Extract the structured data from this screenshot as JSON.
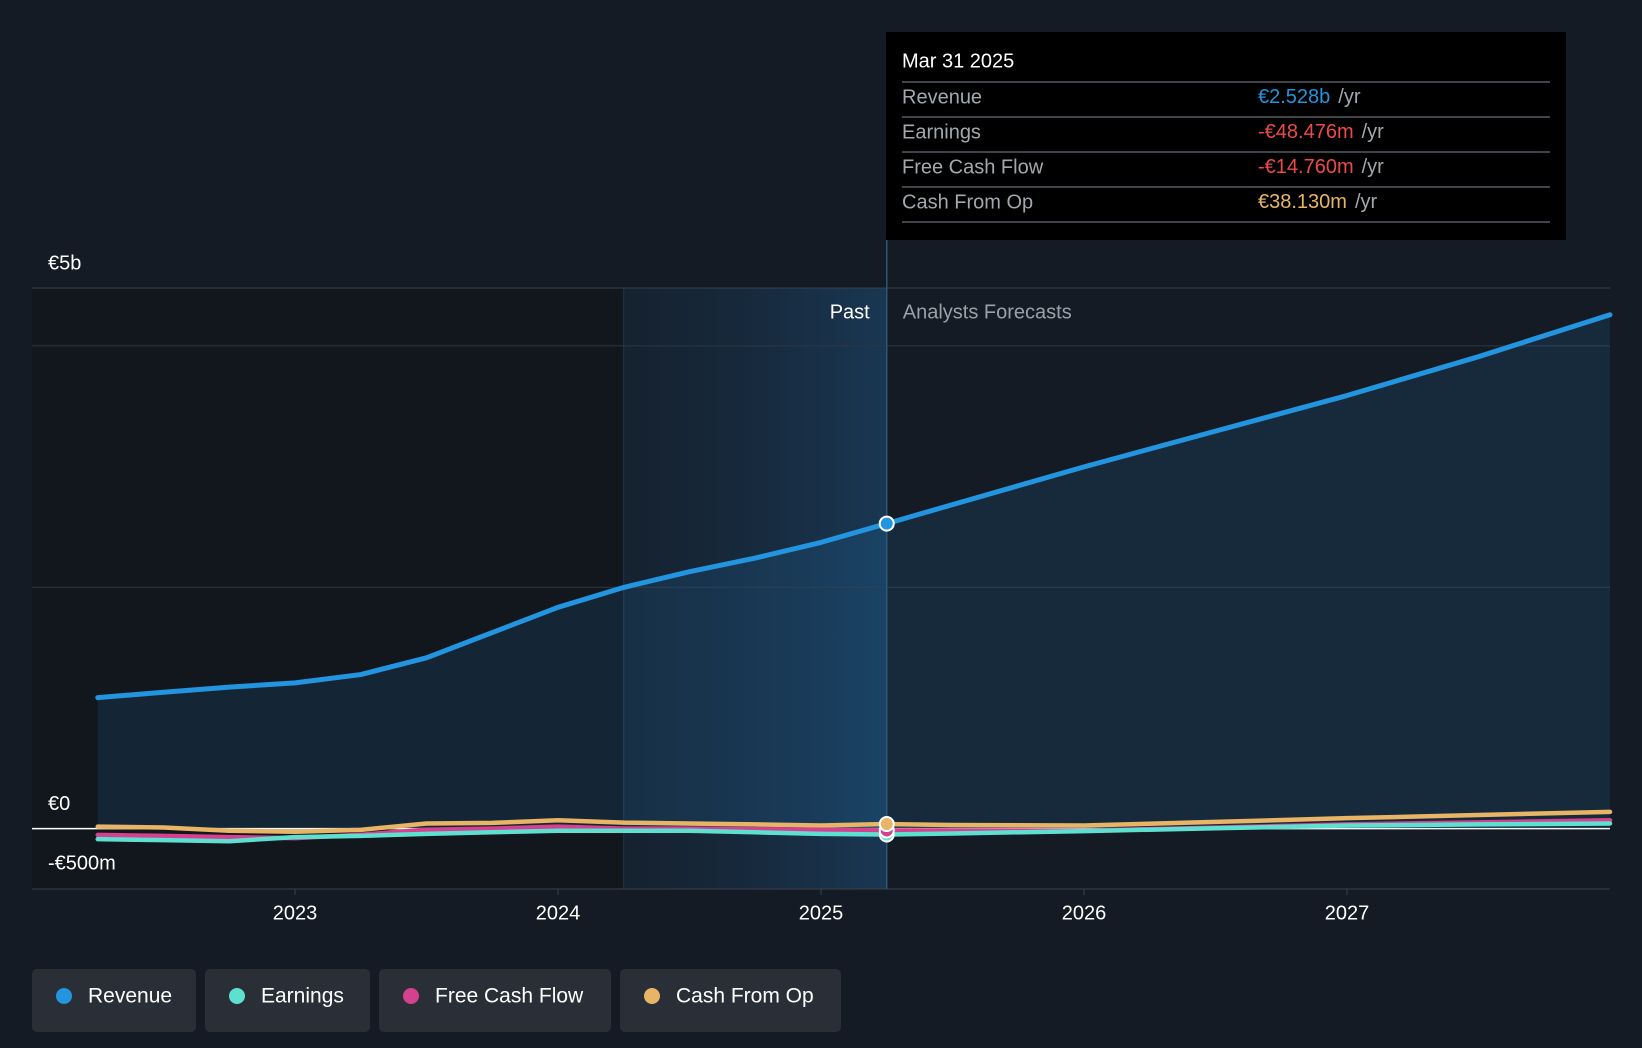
{
  "chart_data": {
    "type": "line",
    "x": [
      2022.25,
      2022.5,
      2022.75,
      2023,
      2023.25,
      2023.5,
      2023.75,
      2024,
      2024.25,
      2024.5,
      2024.75,
      2025,
      2025.25,
      2025.5,
      2026,
      2026.5,
      2027,
      2027.5,
      2028
    ],
    "series": [
      {
        "name": "Revenue",
        "color": "#2394df",
        "values": [
          1086,
          1130,
          1173,
          1208,
          1277,
          1416,
          1625,
          1834,
          1999,
          2129,
          2242,
          2372,
          2528,
          2685,
          2998,
          3294,
          3589,
          3911,
          4258
        ]
      },
      {
        "name": "Earnings",
        "color": "#5ee0d0",
        "values": [
          -87,
          -95,
          -104,
          -70,
          -60,
          -43,
          -30,
          -17,
          -17,
          -17,
          -30,
          -43,
          -48.476,
          -40,
          -20,
          3,
          26,
          35,
          43
        ]
      },
      {
        "name": "Free Cash Flow",
        "color": "#d4418e",
        "values": [
          -52,
          -60,
          -70,
          -78,
          -50,
          -9,
          0,
          17,
          0,
          0,
          -5,
          -9,
          -14.76,
          -15,
          -17,
          9,
          35,
          52,
          70
        ]
      },
      {
        "name": "Cash From Op",
        "color": "#e8b465",
        "values": [
          17,
          10,
          -17,
          -26,
          -10,
          43,
          48,
          70,
          50,
          43,
          35,
          26,
          38.13,
          30,
          26,
          56,
          87,
          113,
          139
        ]
      }
    ],
    "xlim": [
      2022,
      2028
    ],
    "xticks": [
      2023,
      2024,
      2025,
      2026,
      2027
    ],
    "ylim": [
      -500,
      4480
    ],
    "yticks": [
      {
        "value": -500,
        "label": "-€500m"
      },
      {
        "value": 0,
        "label": "€0"
      }
    ],
    "y_max_label": "€5b",
    "grid_lines": [
      2000,
      4000
    ],
    "past_region": [
      2024.25,
      2025.25
    ],
    "annotations": {
      "past": "Past",
      "forecast": "Analysts Forecasts"
    },
    "tooltip": {
      "title": "Mar 31 2025",
      "index": 12,
      "labels": [
        "€2.528b",
        "-€48.476m",
        "-€14.760m",
        "€38.130m"
      ],
      "suffix": "/yr"
    }
  }
}
